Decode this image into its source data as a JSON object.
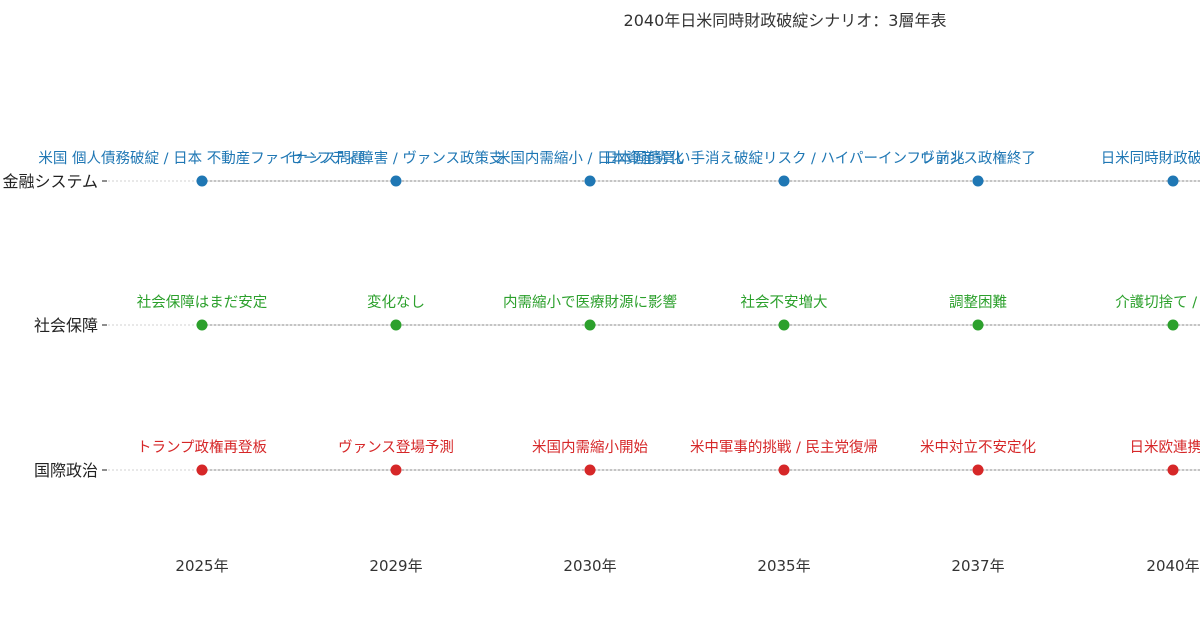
{
  "chart_data": {
    "type": "scatter",
    "title": "2040年日米同時財政破綻シナリオ：3層年表",
    "xlabel": "",
    "ylabel": "",
    "grid": false,
    "legend": "none",
    "x_ticks": [
      "2025年",
      "2029年",
      "2030年",
      "2035年",
      "2037年",
      "2040年"
    ],
    "categories": [
      "国際政治",
      "社会保障",
      "金融システム"
    ],
    "series": [
      {
        "row": "国際政治",
        "color": "#d62728",
        "points": [
          {
            "x": "2025年",
            "label": "トランプ政権再登板"
          },
          {
            "x": "2029年",
            "label": "ヴァンス登場予測"
          },
          {
            "x": "2030年",
            "label": "米国内需縮小開始"
          },
          {
            "x": "2035年",
            "label": "米中軍事的挑戦 / 民主党復帰"
          },
          {
            "x": "2037年",
            "label": "米中対立不安定化"
          },
          {
            "x": "2040年",
            "label": "日米欧連携崩"
          }
        ]
      },
      {
        "row": "社会保障",
        "color": "#2ca02c",
        "points": [
          {
            "x": "2025年",
            "label": "社会保障はまだ安定"
          },
          {
            "x": "2029年",
            "label": "変化なし"
          },
          {
            "x": "2030年",
            "label": "内需縮小で医療財源に影響"
          },
          {
            "x": "2035年",
            "label": "社会不安増大"
          },
          {
            "x": "2037年",
            "label": "調整困難"
          },
          {
            "x": "2040年",
            "label": "介護切捨て / 未婚"
          }
        ]
      },
      {
        "row": "金融システム",
        "color": "#1f77b4",
        "points": [
          {
            "x": "2025年",
            "label": "米国 個人債務破綻 / 日本 不動産ファイナンス問題"
          },
          {
            "x": "2029年",
            "label": "セーフティ障害 / ヴァンス政策支"
          },
          {
            "x": "2030年",
            "label": "米国内需縮小 / 日本資産劣化"
          },
          {
            "x": "2035年",
            "label": "日本国債買い手消え破綻リスク / ハイパーインフレ前兆"
          },
          {
            "x": "2037年",
            "label": "ヴァンス政権終了"
          },
          {
            "x": "2040年",
            "label": "日米同時財政破綻 / 金"
          }
        ]
      }
    ]
  }
}
